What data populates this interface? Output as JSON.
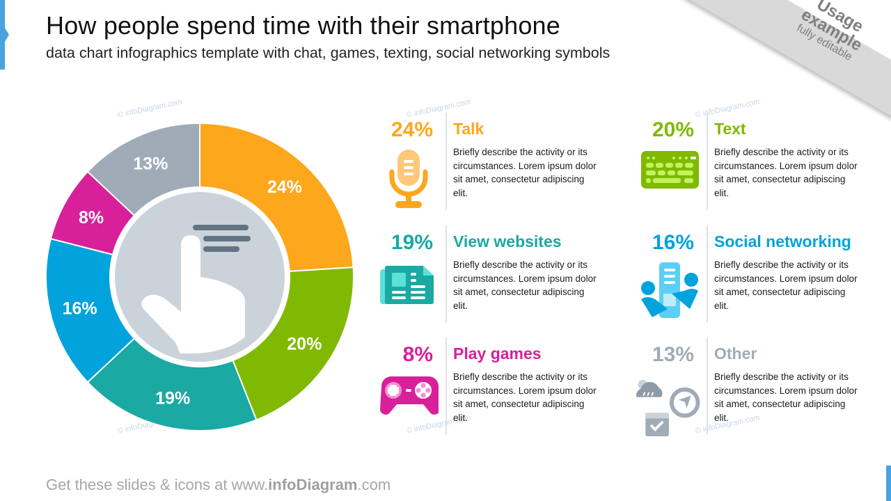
{
  "header": {
    "title": "How people spend time with their smartphone",
    "subtitle": "data chart infographics template with chat, games, texting, social networking symbols"
  },
  "ribbon": {
    "line1": "Usage",
    "line2": "example",
    "line3": "fully editable"
  },
  "watermark": "© infoDiagram.com",
  "colors": {
    "talk": "#fda71c",
    "text": "#80b902",
    "view_websites": "#1aa9a3",
    "social_networking": "#00a3dc",
    "play_games": "#d8209a",
    "other": "#a0abb8",
    "center_disk": "#cbd3da",
    "accent": "#4aa3df"
  },
  "chart_data": {
    "type": "pie",
    "title": "How people spend time with their smartphone",
    "donut": true,
    "categories": [
      "Talk",
      "Text",
      "View websites",
      "Social networking",
      "Play games",
      "Other"
    ],
    "values": [
      24,
      20,
      19,
      16,
      8,
      13
    ],
    "labels": [
      "24%",
      "20%",
      "19%",
      "16%",
      "8%",
      "13%"
    ],
    "colors": [
      "#fda71c",
      "#80b902",
      "#1aa9a3",
      "#00a3dc",
      "#d8209a",
      "#a0abb8"
    ],
    "start_angle": "12 o'clock, clockwise",
    "center_icon": "hand-swipe-icon"
  },
  "cards": [
    {
      "pct": "24%",
      "name": "Talk",
      "icon": "microphone-icon",
      "desc": "Briefly describe the activity or its circumstances. Lorem ipsum dolor sit amet, consectetur adipiscing elit."
    },
    {
      "pct": "20%",
      "name": "Text",
      "icon": "keyboard-icon",
      "desc": "Briefly describe the activity or its circumstances. Lorem ipsum dolor sit amet, consectetur adipiscing elit."
    },
    {
      "pct": "19%",
      "name": "View websites",
      "icon": "newspaper-icon",
      "desc": "Briefly describe the activity or its circumstances. Lorem ipsum dolor sit amet, consectetur adipiscing elit."
    },
    {
      "pct": "16%",
      "name": "Social networking",
      "icon": "social-network-icon",
      "desc": "Briefly describe the activity or its circumstances. Lorem ipsum dolor sit amet, consectetur adipiscing elit."
    },
    {
      "pct": "8%",
      "name": "Play games",
      "icon": "gamepad-icon",
      "desc": "Briefly describe the activity or its circumstances. Lorem ipsum dolor sit amet, consectetur adipiscing elit."
    },
    {
      "pct": "13%",
      "name": "Other",
      "icon": "weather-compass-calendar-icons",
      "desc": "Briefly describe the activity or its circumstances. Lorem ipsum dolor sit amet, consectetur adipiscing elit."
    }
  ],
  "footer": {
    "prefix": "Get these slides & icons at www.",
    "brand": "infoDiagram",
    "suffix": ".com"
  }
}
